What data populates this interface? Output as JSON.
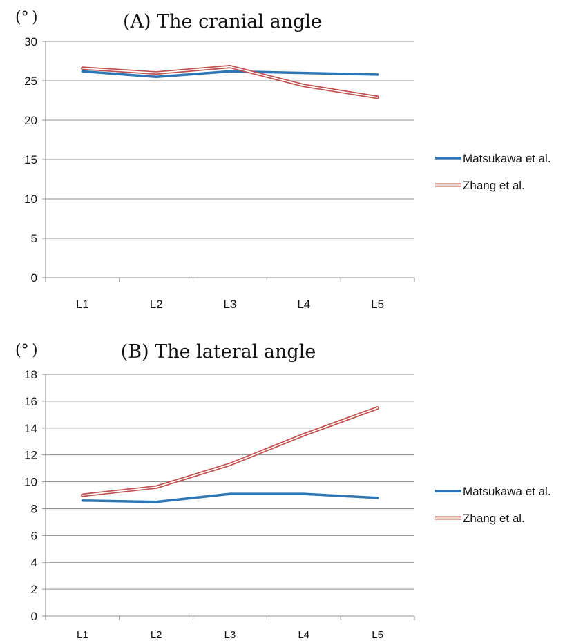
{
  "chart_data": [
    {
      "type": "line",
      "title": "(A) The cranial angle",
      "unit_label": "(° )",
      "categories": [
        "L1",
        "L2",
        "L3",
        "L4",
        "L5"
      ],
      "ylim": [
        0,
        30
      ],
      "yticks": [
        0,
        5,
        10,
        15,
        20,
        25,
        30
      ],
      "grid": true,
      "legend_position": "right",
      "series": [
        {
          "name": "Matsukawa et al.",
          "values": [
            26.2,
            25.5,
            26.2,
            26.0,
            25.8
          ],
          "color": "#2e75b6",
          "style": "solid"
        },
        {
          "name": "Zhang et al.",
          "values": [
            26.6,
            26.0,
            26.8,
            24.4,
            22.9
          ],
          "color": "#c0504d",
          "style": "double"
        }
      ]
    },
    {
      "type": "line",
      "title": "(B) The lateral angle",
      "unit_label": "(° )",
      "categories": [
        "L1",
        "L2",
        "L3",
        "L4",
        "L5"
      ],
      "ylim": [
        0,
        18
      ],
      "yticks": [
        0,
        2,
        4,
        6,
        8,
        10,
        12,
        14,
        16,
        18
      ],
      "grid": true,
      "legend_position": "right",
      "series": [
        {
          "name": "Matsukawa et al.",
          "values": [
            8.6,
            8.5,
            9.1,
            9.1,
            8.8
          ],
          "color": "#2e75b6",
          "style": "solid"
        },
        {
          "name": "Zhang et al.",
          "values": [
            9.0,
            9.6,
            11.3,
            13.5,
            15.5
          ],
          "color": "#c0504d",
          "style": "double"
        }
      ]
    }
  ]
}
